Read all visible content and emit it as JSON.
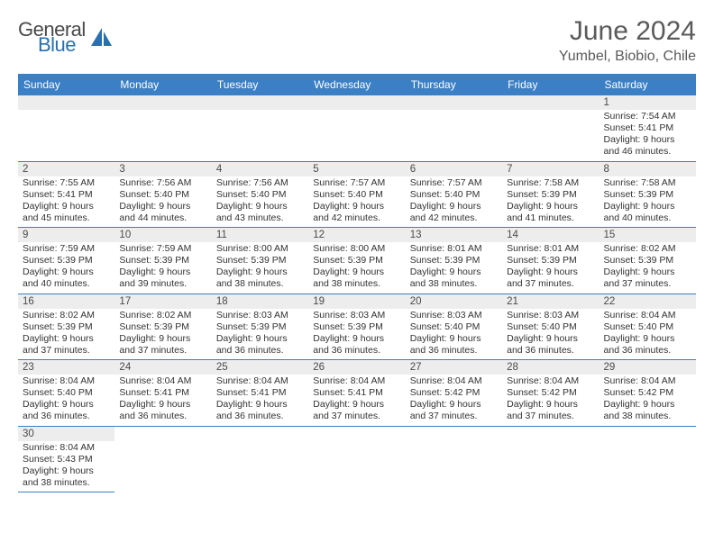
{
  "brand": {
    "part1": "General",
    "part2": "Blue"
  },
  "title": "June 2024",
  "location": "Yumbel, Biobio, Chile",
  "colors": {
    "header_bg": "#3b7fc4",
    "header_text": "#ffffff",
    "cell_border": "#3b7fc4",
    "daynum_bg": "#ededed",
    "brand_blue": "#2a6fb0",
    "brand_gray": "#4a4a4a"
  },
  "day_headers": [
    "Sunday",
    "Monday",
    "Tuesday",
    "Wednesday",
    "Thursday",
    "Friday",
    "Saturday"
  ],
  "weeks": [
    [
      null,
      null,
      null,
      null,
      null,
      null,
      {
        "d": "1",
        "sr": "7:54 AM",
        "ss": "5:41 PM",
        "dl": "9 hours and 46 minutes."
      }
    ],
    [
      {
        "d": "2",
        "sr": "7:55 AM",
        "ss": "5:41 PM",
        "dl": "9 hours and 45 minutes."
      },
      {
        "d": "3",
        "sr": "7:56 AM",
        "ss": "5:40 PM",
        "dl": "9 hours and 44 minutes."
      },
      {
        "d": "4",
        "sr": "7:56 AM",
        "ss": "5:40 PM",
        "dl": "9 hours and 43 minutes."
      },
      {
        "d": "5",
        "sr": "7:57 AM",
        "ss": "5:40 PM",
        "dl": "9 hours and 42 minutes."
      },
      {
        "d": "6",
        "sr": "7:57 AM",
        "ss": "5:40 PM",
        "dl": "9 hours and 42 minutes."
      },
      {
        "d": "7",
        "sr": "7:58 AM",
        "ss": "5:39 PM",
        "dl": "9 hours and 41 minutes."
      },
      {
        "d": "8",
        "sr": "7:58 AM",
        "ss": "5:39 PM",
        "dl": "9 hours and 40 minutes."
      }
    ],
    [
      {
        "d": "9",
        "sr": "7:59 AM",
        "ss": "5:39 PM",
        "dl": "9 hours and 40 minutes."
      },
      {
        "d": "10",
        "sr": "7:59 AM",
        "ss": "5:39 PM",
        "dl": "9 hours and 39 minutes."
      },
      {
        "d": "11",
        "sr": "8:00 AM",
        "ss": "5:39 PM",
        "dl": "9 hours and 38 minutes."
      },
      {
        "d": "12",
        "sr": "8:00 AM",
        "ss": "5:39 PM",
        "dl": "9 hours and 38 minutes."
      },
      {
        "d": "13",
        "sr": "8:01 AM",
        "ss": "5:39 PM",
        "dl": "9 hours and 38 minutes."
      },
      {
        "d": "14",
        "sr": "8:01 AM",
        "ss": "5:39 PM",
        "dl": "9 hours and 37 minutes."
      },
      {
        "d": "15",
        "sr": "8:02 AM",
        "ss": "5:39 PM",
        "dl": "9 hours and 37 minutes."
      }
    ],
    [
      {
        "d": "16",
        "sr": "8:02 AM",
        "ss": "5:39 PM",
        "dl": "9 hours and 37 minutes."
      },
      {
        "d": "17",
        "sr": "8:02 AM",
        "ss": "5:39 PM",
        "dl": "9 hours and 37 minutes."
      },
      {
        "d": "18",
        "sr": "8:03 AM",
        "ss": "5:39 PM",
        "dl": "9 hours and 36 minutes."
      },
      {
        "d": "19",
        "sr": "8:03 AM",
        "ss": "5:39 PM",
        "dl": "9 hours and 36 minutes."
      },
      {
        "d": "20",
        "sr": "8:03 AM",
        "ss": "5:40 PM",
        "dl": "9 hours and 36 minutes."
      },
      {
        "d": "21",
        "sr": "8:03 AM",
        "ss": "5:40 PM",
        "dl": "9 hours and 36 minutes."
      },
      {
        "d": "22",
        "sr": "8:04 AM",
        "ss": "5:40 PM",
        "dl": "9 hours and 36 minutes."
      }
    ],
    [
      {
        "d": "23",
        "sr": "8:04 AM",
        "ss": "5:40 PM",
        "dl": "9 hours and 36 minutes."
      },
      {
        "d": "24",
        "sr": "8:04 AM",
        "ss": "5:41 PM",
        "dl": "9 hours and 36 minutes."
      },
      {
        "d": "25",
        "sr": "8:04 AM",
        "ss": "5:41 PM",
        "dl": "9 hours and 36 minutes."
      },
      {
        "d": "26",
        "sr": "8:04 AM",
        "ss": "5:41 PM",
        "dl": "9 hours and 37 minutes."
      },
      {
        "d": "27",
        "sr": "8:04 AM",
        "ss": "5:42 PM",
        "dl": "9 hours and 37 minutes."
      },
      {
        "d": "28",
        "sr": "8:04 AM",
        "ss": "5:42 PM",
        "dl": "9 hours and 37 minutes."
      },
      {
        "d": "29",
        "sr": "8:04 AM",
        "ss": "5:42 PM",
        "dl": "9 hours and 38 minutes."
      }
    ],
    [
      {
        "d": "30",
        "sr": "8:04 AM",
        "ss": "5:43 PM",
        "dl": "9 hours and 38 minutes."
      },
      null,
      null,
      null,
      null,
      null,
      null
    ]
  ],
  "labels": {
    "sunrise": "Sunrise: ",
    "sunset": "Sunset: ",
    "daylight": "Daylight: "
  }
}
